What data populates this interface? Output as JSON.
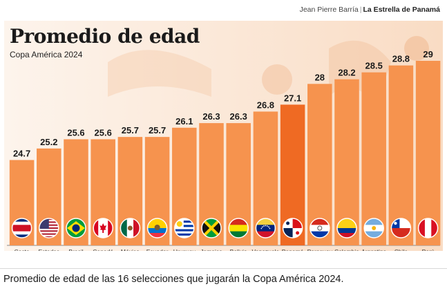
{
  "credit": {
    "author": "Jean Pierre Barría",
    "separator": "|",
    "publication": "La Estrella de Panamá"
  },
  "caption": "Promedio de edad de las 16 selecciones que jugarán la Copa América 2024.",
  "colors": {
    "bar": "#f6934e",
    "highlight": "#ef6a23",
    "background_light": "#fcefe3",
    "background_mid": "#f8d7bd",
    "axis": "#888888"
  },
  "chart_data": {
    "type": "bar",
    "title": "Promedio de edad",
    "subtitle": "Copa América 2024",
    "categories": [
      "Costa Rica",
      "Estados Unidos",
      "Brasil",
      "Canadá",
      "México",
      "Ecuador",
      "Uruguay",
      "Jamaica",
      "Bolivia",
      "Venezuela",
      "Panamá",
      "Paraguay",
      "Colombia",
      "Argentina",
      "Chile",
      "Perú"
    ],
    "category_lines": [
      [
        "Costa",
        "Rica"
      ],
      [
        "Estados",
        "Unidos"
      ],
      [
        "Brasil"
      ],
      [
        "Canadá"
      ],
      [
        "México"
      ],
      [
        "Ecuador"
      ],
      [
        "Uruguay"
      ],
      [
        "Jamaica"
      ],
      [
        "Bolivia"
      ],
      [
        "Venezuela"
      ],
      [
        "Panamá"
      ],
      [
        "Paraguay"
      ],
      [
        "Colombia"
      ],
      [
        "Argentina"
      ],
      [
        "Chile"
      ],
      [
        "Perú"
      ]
    ],
    "values": [
      24.7,
      25.2,
      25.6,
      25.6,
      25.7,
      25.7,
      26.1,
      26.3,
      26.3,
      26.8,
      27.1,
      28,
      28.2,
      28.5,
      28.8,
      29
    ],
    "value_labels": [
      "24.7",
      "25.2",
      "25.6",
      "25.6",
      "25.7",
      "25.7",
      "26.1",
      "26.3",
      "26.3",
      "26.8",
      "27.1",
      "28",
      "28.2",
      "28.5",
      "28.8",
      "29"
    ],
    "highlighted": "Panamá",
    "flags": [
      "costa-rica-flag",
      "usa-flag",
      "brazil-flag",
      "canada-flag",
      "mexico-flag",
      "ecuador-flag",
      "uruguay-flag",
      "jamaica-flag",
      "bolivia-flag",
      "venezuela-flag",
      "panama-flag",
      "paraguay-flag",
      "colombia-flag",
      "argentina-flag",
      "chile-flag",
      "peru-flag"
    ],
    "ylim": [
      21,
      29
    ],
    "grid": false,
    "legend": "none"
  }
}
